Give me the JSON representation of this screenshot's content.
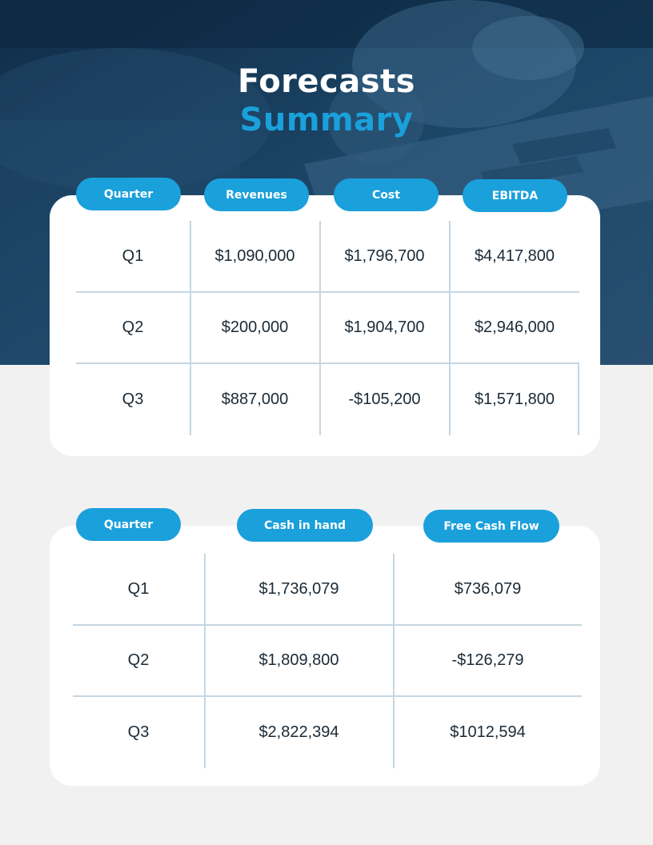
{
  "header": {
    "title_line1": "Forecasts",
    "title_line2": "Summary"
  },
  "table1": {
    "headers": [
      "Quarter",
      "Revenues",
      "Cost",
      "EBITDA"
    ],
    "rows": [
      [
        "Q1",
        "$1,090,000",
        "$1,796,700",
        "$4,417,800"
      ],
      [
        "Q2",
        "$200,000",
        "$1,904,700",
        "$2,946,000"
      ],
      [
        "Q3",
        "$887,000",
        "-$105,200",
        "$1,571,800"
      ]
    ]
  },
  "table2": {
    "headers": [
      "Quarter",
      "Cash in hand",
      "Free Cash Flow"
    ],
    "rows": [
      [
        "Q1",
        "$1,736,079",
        "$736,079"
      ],
      [
        "Q2",
        "$1,809,800",
        "-$126,279"
      ],
      [
        "Q3",
        "$2,822,394",
        "$1012,594"
      ]
    ]
  },
  "colors": {
    "accent": "#1aa0db",
    "hero_background": "#16395a",
    "page_background": "#f1f1f1"
  }
}
